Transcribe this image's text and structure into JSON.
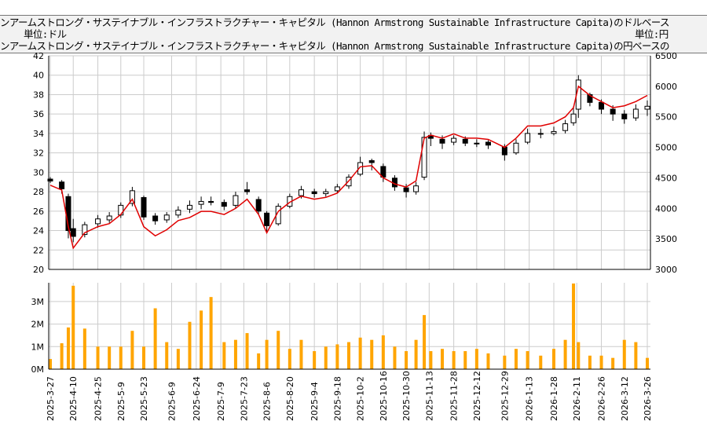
{
  "header": {
    "title_usd": "ンアームストロング・サステイナブル・インフラストラクチャー・キャピタル (Hannon Armstrong Sustainable Infrastructure Capita)のドルベース",
    "title_jpy": "ンアームストロング・サステイナブル・インフラストラクチャー・キャピタル (Hannon Armstrong Sustainable Infrastructure Capita)の円ベースの",
    "unit_left": "単位:ドル",
    "unit_right": "単位:円"
  },
  "chart_data": [
    {
      "type": "candlestick+line",
      "ylim_left": [
        20,
        42
      ],
      "ylim_right": [
        3000,
        6500
      ],
      "grid": true,
      "yticks_left": [
        "20",
        "22",
        "24",
        "26",
        "28",
        "30",
        "32",
        "34",
        "36",
        "38",
        "40",
        "42"
      ],
      "yticks_right": [
        "3000",
        "3500",
        "4000",
        "4500",
        "5000",
        "5500",
        "6000",
        "6500"
      ],
      "colors": {
        "up": "#ffffff",
        "down": "#000000",
        "jpy_line": "#e00000"
      },
      "dates": [
        "2025-03-27",
        "2025-04-03",
        "2025-04-07",
        "2025-04-10",
        "2025-04-17",
        "2025-04-25",
        "2025-05-02",
        "2025-05-09",
        "2025-05-16",
        "2025-05-23",
        "2025-05-30",
        "2025-06-06",
        "2025-06-13",
        "2025-06-20",
        "2025-06-27",
        "2025-07-03",
        "2025-07-11",
        "2025-07-18",
        "2025-07-25",
        "2025-08-01",
        "2025-08-06",
        "2025-08-13",
        "2025-08-20",
        "2025-08-27",
        "2025-09-04",
        "2025-09-11",
        "2025-09-18",
        "2025-09-25",
        "2025-10-02",
        "2025-10-09",
        "2025-10-16",
        "2025-10-23",
        "2025-10-30",
        "2025-11-05",
        "2025-11-10",
        "2025-11-14",
        "2025-11-21",
        "2025-11-28",
        "2025-12-05",
        "2025-12-12",
        "2025-12-19",
        "2025-12-29",
        "2026-01-05",
        "2026-01-12",
        "2026-01-20",
        "2026-01-28",
        "2026-02-04",
        "2026-02-09",
        "2026-02-12",
        "2026-02-19",
        "2026-02-26",
        "2026-03-05",
        "2026-03-12",
        "2026-03-19",
        "2026-03-26"
      ],
      "ohlc": [
        [
          29.3,
          29.5,
          28.9,
          29.1
        ],
        [
          29.0,
          29.2,
          27.8,
          28.3
        ],
        [
          27.5,
          27.8,
          23.2,
          24.0
        ],
        [
          24.2,
          25.2,
          22.8,
          23.4
        ],
        [
          23.6,
          24.9,
          23.3,
          24.6
        ],
        [
          24.7,
          25.6,
          24.3,
          25.2
        ],
        [
          25.1,
          25.9,
          24.8,
          25.5
        ],
        [
          25.6,
          26.9,
          25.3,
          26.6
        ],
        [
          26.8,
          28.5,
          26.5,
          28.1
        ],
        [
          27.4,
          27.6,
          25.1,
          25.4
        ],
        [
          25.5,
          25.8,
          24.6,
          25.0
        ],
        [
          25.1,
          25.9,
          24.8,
          25.6
        ],
        [
          25.6,
          26.5,
          25.3,
          26.1
        ],
        [
          26.2,
          27.1,
          25.8,
          26.6
        ],
        [
          26.7,
          27.5,
          26.2,
          27.0
        ],
        [
          27.0,
          27.5,
          26.6,
          26.9
        ],
        [
          26.9,
          27.2,
          26.1,
          26.5
        ],
        [
          26.6,
          28.0,
          26.3,
          27.6
        ],
        [
          28.2,
          29.0,
          27.7,
          28.0
        ],
        [
          27.2,
          27.5,
          25.7,
          26.0
        ],
        [
          25.8,
          26.0,
          23.9,
          24.5
        ],
        [
          24.7,
          26.8,
          24.5,
          26.5
        ],
        [
          26.5,
          27.8,
          26.3,
          27.5
        ],
        [
          27.6,
          28.6,
          27.3,
          28.2
        ],
        [
          28.0,
          28.3,
          27.4,
          27.8
        ],
        [
          27.8,
          28.3,
          27.5,
          28.0
        ],
        [
          28.1,
          28.8,
          27.9,
          28.5
        ],
        [
          28.6,
          29.8,
          28.3,
          29.5
        ],
        [
          29.8,
          31.6,
          29.6,
          31.0
        ],
        [
          31.2,
          31.4,
          30.2,
          31.0
        ],
        [
          30.6,
          30.9,
          29.0,
          29.5
        ],
        [
          29.4,
          29.7,
          28.1,
          28.5
        ],
        [
          28.4,
          28.8,
          27.4,
          28.0
        ],
        [
          28.0,
          29.0,
          27.7,
          28.6
        ],
        [
          29.5,
          34.2,
          29.2,
          33.6
        ],
        [
          33.8,
          34.1,
          32.7,
          33.5
        ],
        [
          33.4,
          33.8,
          32.4,
          33.0
        ],
        [
          33.1,
          33.8,
          32.8,
          33.5
        ],
        [
          33.4,
          33.7,
          32.7,
          33.0
        ],
        [
          33.0,
          33.4,
          32.6,
          33.0
        ],
        [
          33.1,
          33.3,
          32.4,
          32.8
        ],
        [
          32.6,
          32.9,
          31.2,
          31.8
        ],
        [
          32.0,
          33.4,
          31.8,
          33.0
        ],
        [
          33.1,
          34.5,
          32.9,
          34.0
        ],
        [
          34.0,
          34.5,
          33.5,
          34.0
        ],
        [
          34.0,
          34.7,
          33.8,
          34.2
        ],
        [
          34.3,
          35.4,
          34.0,
          35.0
        ],
        [
          35.1,
          36.8,
          34.8,
          36.0
        ],
        [
          36.5,
          40.0,
          35.6,
          39.5
        ],
        [
          38.0,
          38.2,
          36.8,
          37.2
        ],
        [
          37.2,
          37.5,
          36.0,
          36.5
        ],
        [
          36.5,
          36.9,
          35.3,
          36.0
        ],
        [
          36.0,
          36.4,
          35.0,
          35.5
        ],
        [
          35.6,
          37.0,
          35.3,
          36.5
        ],
        [
          36.5,
          37.4,
          35.8,
          36.8
        ]
      ],
      "jpy": [
        4380,
        4300,
        3700,
        3350,
        3600,
        3700,
        3750,
        3900,
        4150,
        3700,
        3550,
        3650,
        3800,
        3850,
        3950,
        3950,
        3900,
        4000,
        4150,
        3900,
        3600,
        3950,
        4100,
        4200,
        4150,
        4180,
        4250,
        4450,
        4680,
        4700,
        4500,
        4400,
        4350,
        4450,
        5150,
        5200,
        5150,
        5220,
        5150,
        5150,
        5130,
        5000,
        5150,
        5350,
        5350,
        5400,
        5500,
        5650,
        6000,
        5850,
        5750,
        5650,
        5680,
        5750,
        5850
      ],
      "volume_ticks": [
        "0M",
        "1M",
        "2M",
        "3M"
      ],
      "volume_color": "#ffa500",
      "volume": [
        0.45,
        1.15,
        1.85,
        3.7,
        1.8,
        1.0,
        1.0,
        1.0,
        1.7,
        1.0,
        2.7,
        1.2,
        0.9,
        2.1,
        2.6,
        3.2,
        1.2,
        1.3,
        1.6,
        0.7,
        1.3,
        1.7,
        0.9,
        1.3,
        0.8,
        1.0,
        1.1,
        1.2,
        1.4,
        1.3,
        1.5,
        1.0,
        0.8,
        1.3,
        2.4,
        0.8,
        0.9,
        0.8,
        0.8,
        0.9,
        0.7,
        0.6,
        0.9,
        0.8,
        0.6,
        0.9,
        1.3,
        3.8,
        1.2,
        0.6,
        0.6,
        0.5,
        1.3,
        1.2,
        0.5
      ],
      "xticks": [
        "2025-3-27",
        "2025-4-10",
        "2025-4-25",
        "2025-5-9",
        "2025-5-23",
        "2025-6-9",
        "2025-6-24",
        "2025-7-9",
        "2025-7-23",
        "2025-8-6",
        "2025-8-20",
        "2025-9-4",
        "2025-9-18",
        "2025-10-2",
        "2025-10-16",
        "2025-10-30",
        "2025-11-13",
        "2025-11-28",
        "2025-12-12",
        "2025-12-29",
        "2026-1-13",
        "2026-1-28",
        "2026-2-11",
        "2026-2-26",
        "2026-3-12",
        "2026-3-26"
      ]
    }
  ]
}
